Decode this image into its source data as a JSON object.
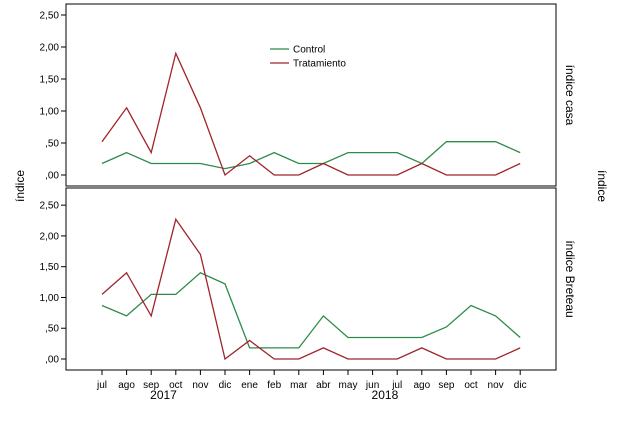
{
  "chart_data": {
    "type": "line",
    "y_axis_title": "índice",
    "facet_axis_title": "índice",
    "categories": [
      "jul",
      "ago",
      "sep",
      "oct",
      "nov",
      "dic",
      "ene",
      "feb",
      "mar",
      "abr",
      "may",
      "jun",
      "jul",
      "ago",
      "sep",
      "oct",
      "nov",
      "dic"
    ],
    "year_labels": [
      {
        "label": "2017",
        "span": [
          "jul",
          "dic"
        ]
      },
      {
        "label": "2018",
        "span": [
          "ene",
          "dic"
        ]
      }
    ],
    "legend": {
      "placement": "top-center",
      "entries": [
        {
          "name": "Control",
          "color": "#2e8b4a"
        },
        {
          "name": "Tratamiento",
          "color": "#a0242a"
        }
      ]
    },
    "panels": [
      {
        "label": "índice casa",
        "ylim": [
          0,
          2.5
        ],
        "yticks": [
          ",00",
          ",50",
          "1,00",
          "1,50",
          "2,00",
          "2,50"
        ],
        "ytick_values": [
          0,
          0.5,
          1.0,
          1.5,
          2.0,
          2.5
        ],
        "series": [
          {
            "name": "Control",
            "values": [
              0.18,
              0.35,
              0.18,
              0.18,
              0.18,
              0.1,
              0.18,
              0.35,
              0.18,
              0.18,
              0.35,
              0.35,
              0.35,
              0.18,
              0.52,
              0.52,
              0.52,
              0.35
            ]
          },
          {
            "name": "Tratamiento",
            "values": [
              0.52,
              1.05,
              0.35,
              1.9,
              1.05,
              0.0,
              0.3,
              0.0,
              0.0,
              0.18,
              0.0,
              0.0,
              0.0,
              0.18,
              0.0,
              0.0,
              0.0,
              0.18
            ]
          }
        ]
      },
      {
        "label": "índice Breteau",
        "ylim": [
          0,
          2.6
        ],
        "yticks": [
          ",00",
          ",50",
          "1,00",
          "1,50",
          "2,00",
          "2,50"
        ],
        "ytick_values": [
          0,
          0.5,
          1.0,
          1.5,
          2.0,
          2.5
        ],
        "series": [
          {
            "name": "Control",
            "values": [
              0.87,
              0.7,
              1.05,
              1.05,
              1.4,
              1.22,
              0.18,
              0.18,
              0.18,
              0.7,
              0.35,
              0.35,
              0.35,
              0.35,
              0.52,
              0.87,
              0.7,
              0.35
            ]
          },
          {
            "name": "Tratamiento",
            "values": [
              1.05,
              1.4,
              0.7,
              2.27,
              1.7,
              0.0,
              0.3,
              0.0,
              0.0,
              0.18,
              0.0,
              0.0,
              0.0,
              0.18,
              0.0,
              0.0,
              0.0,
              0.18
            ]
          }
        ]
      }
    ]
  }
}
